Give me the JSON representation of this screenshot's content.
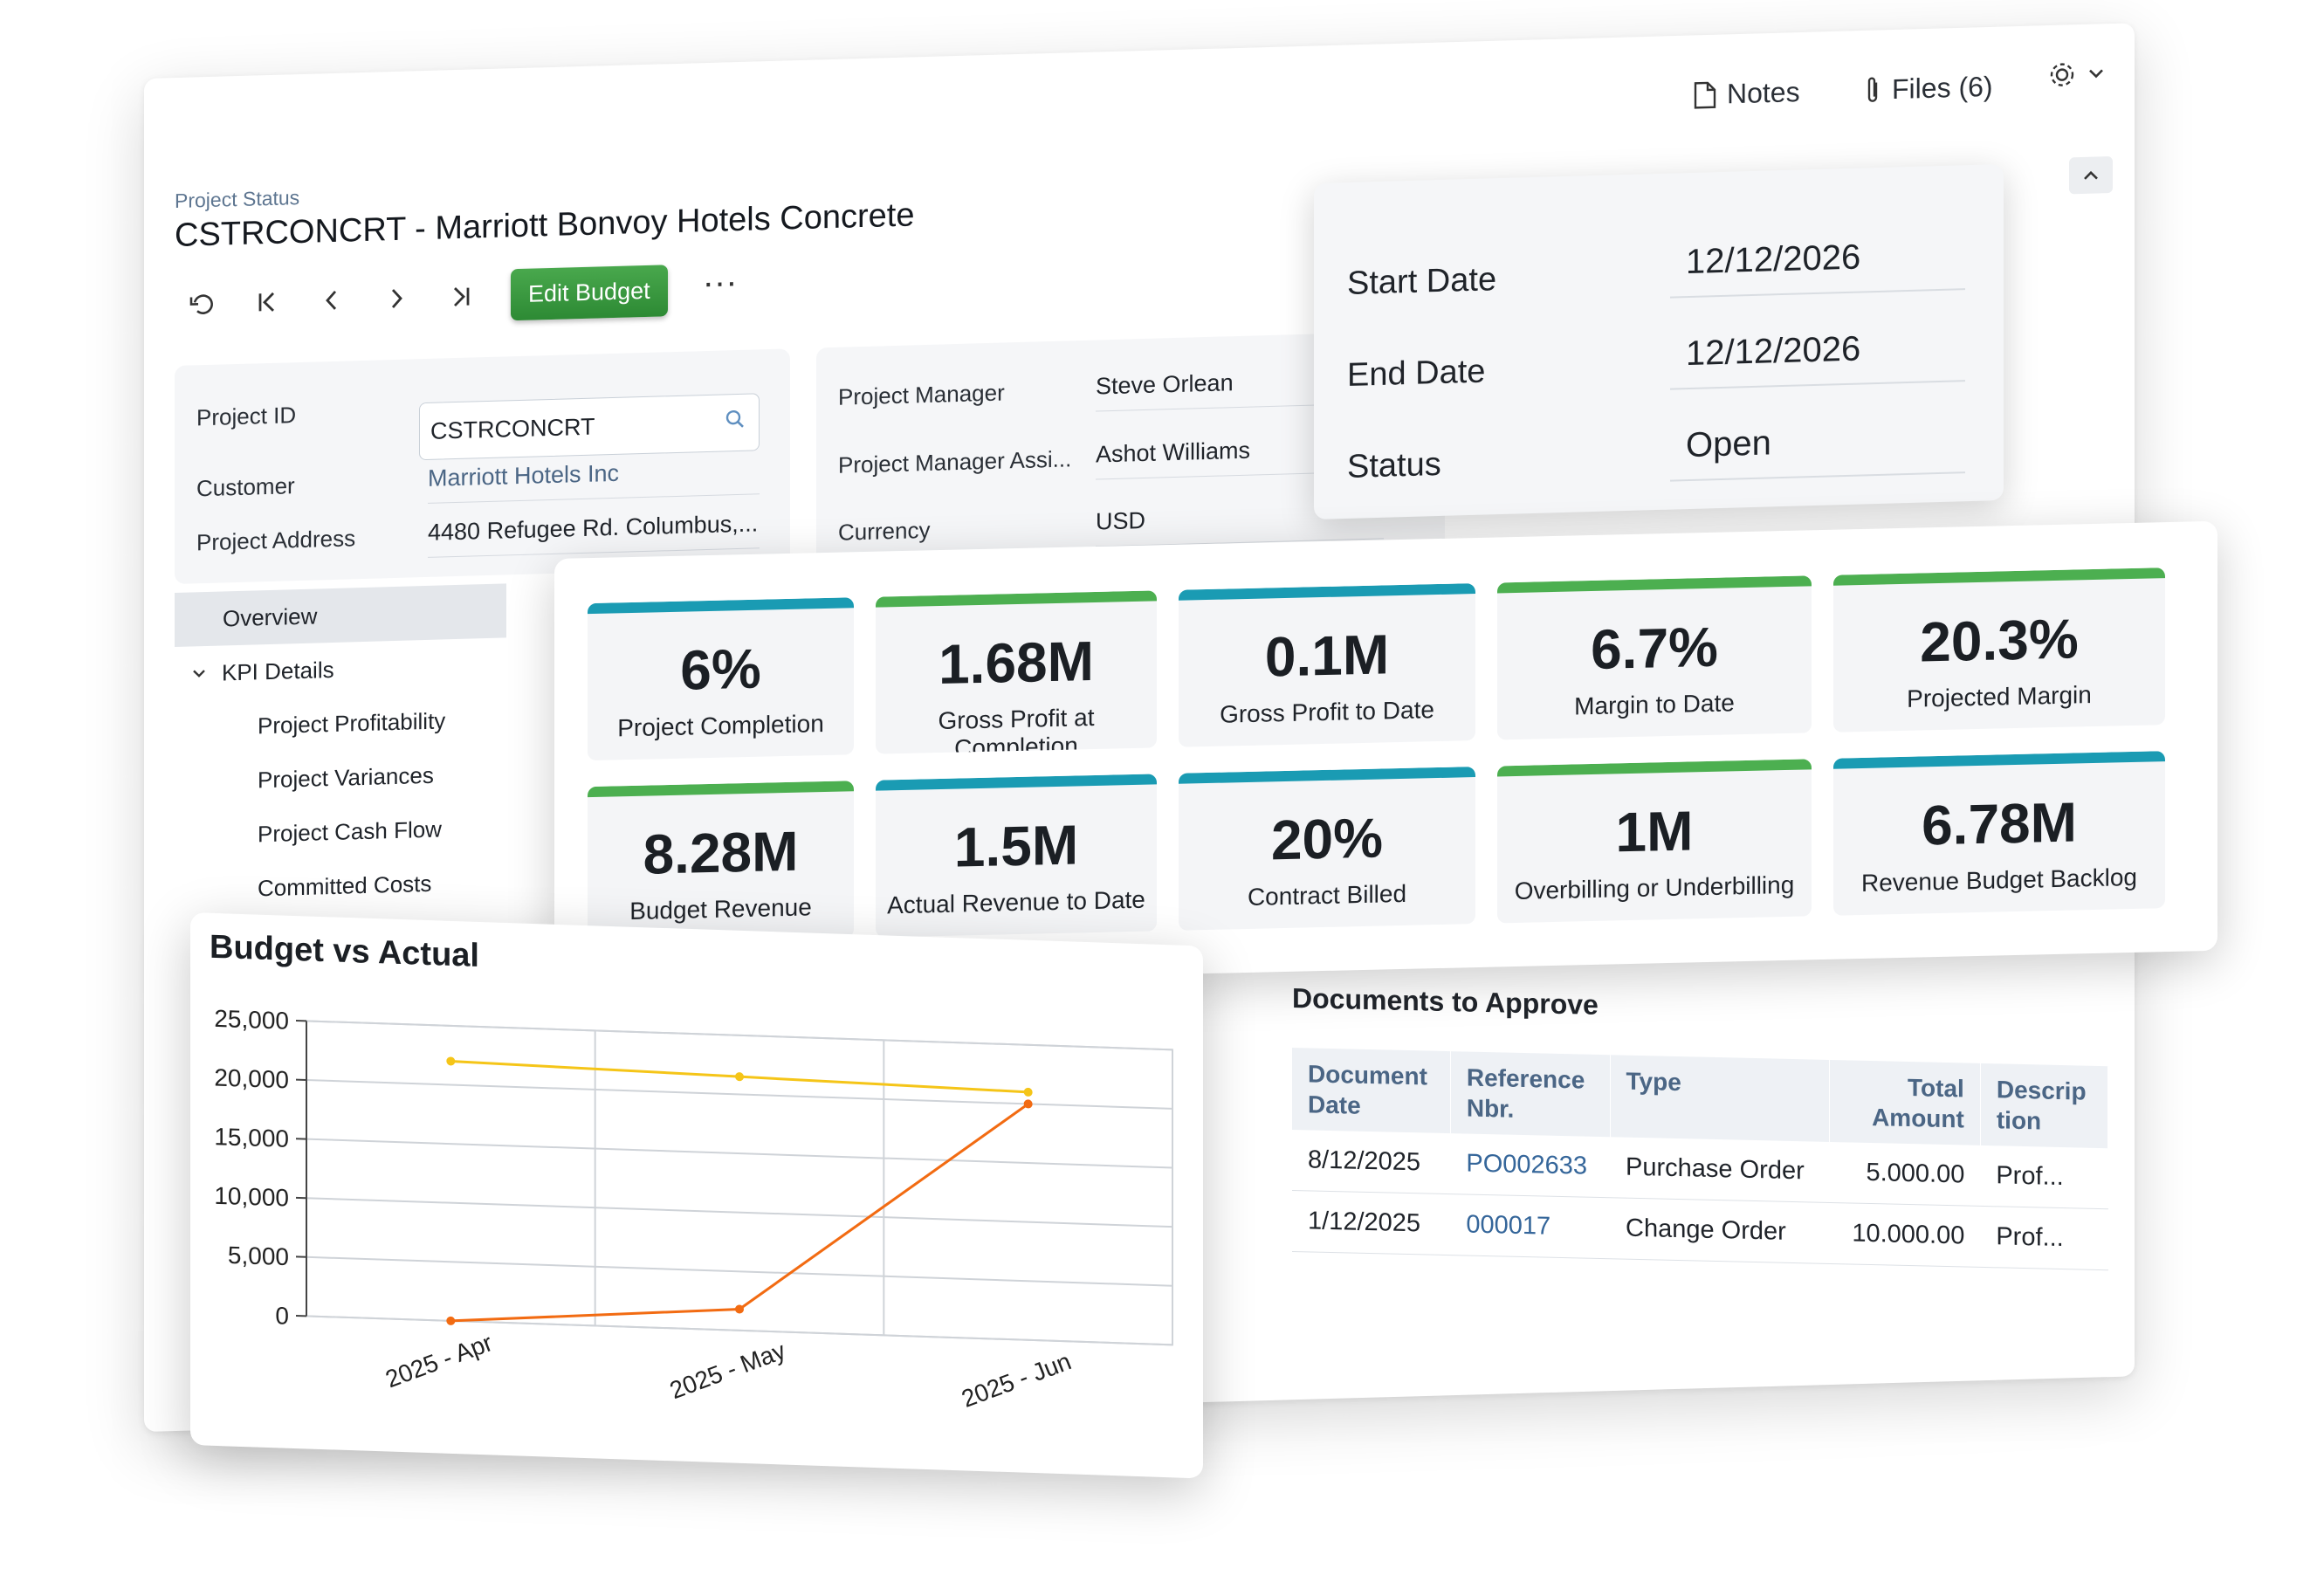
{
  "topbar": {
    "notes_label": "Notes",
    "files_label": "Files (6)"
  },
  "header": {
    "breadcrumb": "Project Status",
    "title": "CSTRCONCRT - Marriott Bonvoy Hotels Concrete",
    "edit_budget_label": "Edit Budget",
    "more_label": "···"
  },
  "summary_left": {
    "project_id_label": "Project ID",
    "project_id_value": "CSTRCONCRT",
    "customer_label": "Customer",
    "customer_value": "Marriott Hotels Inc",
    "address_label": "Project Address",
    "address_value": "4480 Refugee Rd. Columbus,..."
  },
  "summary_mid": {
    "manager_label": "Project Manager",
    "manager_value": "Steve Orlean",
    "assistant_label": "Project Manager Assi...",
    "assistant_value": "Ashot Williams",
    "currency_label": "Currency",
    "currency_value": "USD"
  },
  "dates": {
    "start_label": "Start Date",
    "start_value": "12/12/2026",
    "end_label": "End Date",
    "end_value": "12/12/2026",
    "status_label": "Status",
    "status_value": "Open"
  },
  "nav": {
    "overview": "Overview",
    "kpi_details": "KPI Details",
    "profitability": "Project Profitability",
    "variances": "Project Variances",
    "cash_flow": "Project Cash Flow",
    "committed": "Committed Costs"
  },
  "kpis": [
    {
      "value": "6%",
      "label": "Project Completion",
      "color": "#1a9bb3"
    },
    {
      "value": "1.68M",
      "label": "Gross Profit at Completion",
      "color": "#4caf50"
    },
    {
      "value": "0.1M",
      "label": "Gross Profit to Date",
      "color": "#1a9bb3"
    },
    {
      "value": "6.7%",
      "label": "Margin to Date",
      "color": "#4caf50"
    },
    {
      "value": "20.3%",
      "label": "Projected Margin",
      "color": "#4caf50"
    },
    {
      "value": "8.28M",
      "label": "Budget Revenue",
      "color": "#4caf50"
    },
    {
      "value": "1.5M",
      "label": "Actual Revenue to Date",
      "color": "#1a9bb3"
    },
    {
      "value": "20%",
      "label": "Contract Billed",
      "color": "#1a9bb3"
    },
    {
      "value": "1M",
      "label": "Overbilling or Underbilling",
      "color": "#4caf50"
    },
    {
      "value": "6.78M",
      "label": "Revenue Budget Backlog",
      "color": "#1a9bb3"
    }
  ],
  "documents": {
    "title": "Documents to Approve",
    "headers": {
      "date_l1": "Document",
      "date_l2": "Date",
      "ref_l1": "Reference",
      "ref_l2": "Nbr.",
      "type": "Type",
      "total_l1": "Total",
      "total_l2": "Amount",
      "desc_l1": "Descrip",
      "desc_l2": "tion"
    },
    "rows": [
      {
        "date": "8/12/2025",
        "ref": "PO002633",
        "type": "Purchase Order",
        "amount": "5.000.00",
        "desc": "Prof..."
      },
      {
        "date": "1/12/2025",
        "ref": "000017",
        "type": "Change Order",
        "amount": "10.000.00",
        "desc": "Prof..."
      }
    ]
  },
  "chart_data": {
    "type": "line",
    "title": "Budget vs Actual",
    "categories": [
      "2025 - Apr",
      "2025 - May",
      "2025 - Jun"
    ],
    "series": [
      {
        "name": "Budget",
        "values": [
          22000,
          21500,
          21000
        ],
        "color": "#f5c518"
      },
      {
        "name": "Actual",
        "values": [
          0,
          1800,
          20000
        ],
        "color": "#f26b12"
      }
    ],
    "ylim": [
      0,
      25000
    ],
    "yticks": [
      "25,000",
      "20,000",
      "15,000",
      "10,000",
      "5,000",
      "0"
    ],
    "ytick_values": [
      25000,
      20000,
      15000,
      10000,
      5000,
      0
    ],
    "grid": true,
    "xlabel": "",
    "ylabel": ""
  }
}
